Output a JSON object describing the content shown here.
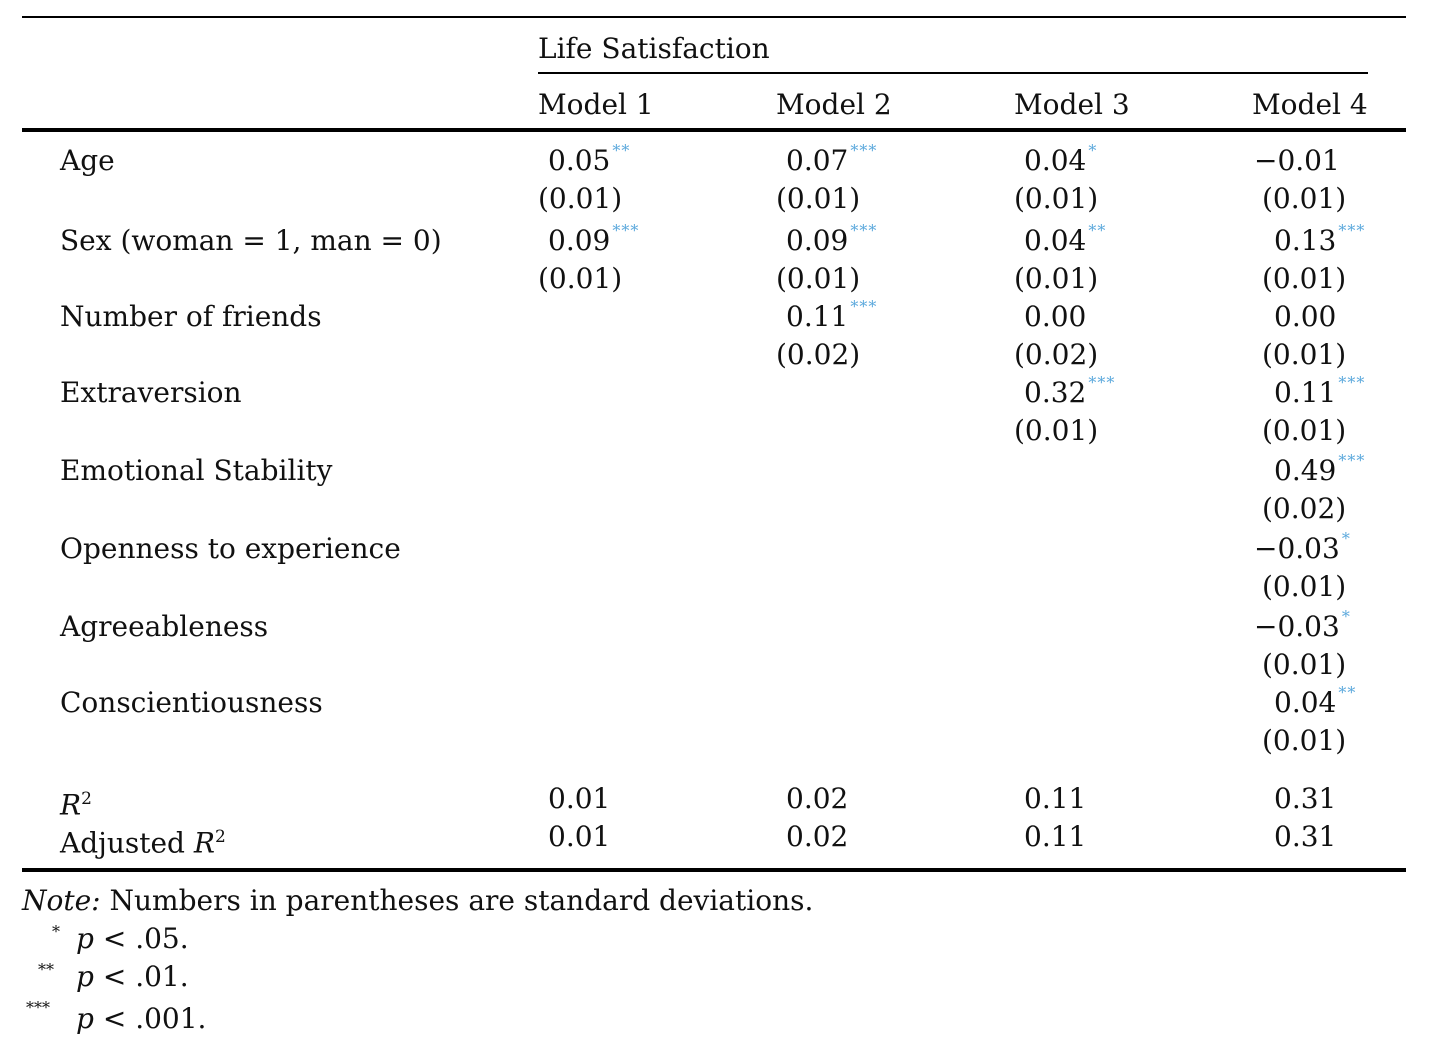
{
  "header": {
    "group_label": "Life Satisfaction",
    "models": [
      "Model 1",
      "Model 2",
      "Model 3",
      "Model 4"
    ]
  },
  "rows": [
    {
      "label": "Age",
      "cells": [
        {
          "coef": "0.05",
          "sig": "**",
          "se": "(0.01)"
        },
        {
          "coef": "0.07",
          "sig": "***",
          "se": "(0.01)"
        },
        {
          "coef": "0.04",
          "sig": "*",
          "se": "(0.01)"
        },
        {
          "coef": "−0.01",
          "sig": "",
          "se": "(0.01)"
        }
      ]
    },
    {
      "label": "Sex (woman = 1, man = 0)",
      "cells": [
        {
          "coef": "0.09",
          "sig": "***",
          "se": "(0.01)"
        },
        {
          "coef": "0.09",
          "sig": "***",
          "se": "(0.01)"
        },
        {
          "coef": "0.04",
          "sig": "**",
          "se": "(0.01)"
        },
        {
          "coef": "0.13",
          "sig": "***",
          "se": "(0.01)"
        }
      ]
    },
    {
      "label": "Number of friends",
      "cells": [
        null,
        {
          "coef": "0.11",
          "sig": "***",
          "se": "(0.02)"
        },
        {
          "coef": "0.00",
          "sig": "",
          "se": "(0.02)"
        },
        {
          "coef": "0.00",
          "sig": "",
          "se": "(0.01)"
        }
      ]
    },
    {
      "label": "Extraversion",
      "cells": [
        null,
        null,
        {
          "coef": "0.32",
          "sig": "***",
          "se": "(0.01)"
        },
        {
          "coef": "0.11",
          "sig": "***",
          "se": "(0.01)"
        }
      ]
    },
    {
      "label": "Emotional Stability",
      "cells": [
        null,
        null,
        null,
        {
          "coef": "0.49",
          "sig": "***",
          "se": "(0.02)"
        }
      ]
    },
    {
      "label": "Openness to experience",
      "cells": [
        null,
        null,
        null,
        {
          "coef": "−0.03",
          "sig": "*",
          "se": "(0.01)"
        }
      ]
    },
    {
      "label": "Agreeableness",
      "cells": [
        null,
        null,
        null,
        {
          "coef": "−0.03",
          "sig": "*",
          "se": "(0.01)"
        }
      ]
    },
    {
      "label": "Conscientiousness",
      "cells": [
        null,
        null,
        null,
        {
          "coef": "0.04",
          "sig": "**",
          "se": "(0.01)"
        }
      ]
    }
  ],
  "fit": {
    "r2_label": "R",
    "r2_sup": "2",
    "adj_label_prefix": "Adjusted ",
    "adj_label_r": "R",
    "adj_sup": "2",
    "r2": [
      "0.01",
      "0.02",
      "0.11",
      "0.31"
    ],
    "adj_r2": [
      "0.01",
      "0.02",
      "0.11",
      "0.31"
    ]
  },
  "notes": {
    "note_label": "Note:",
    "note_text": " Numbers in parentheses are standard deviations.",
    "footnotes": [
      {
        "mark": "*",
        "p": "p",
        "text": " < .05."
      },
      {
        "mark": "**",
        "p": "p",
        "text": " < .01."
      },
      {
        "mark": "***",
        "p": "p",
        "text": " < .001."
      }
    ]
  }
}
